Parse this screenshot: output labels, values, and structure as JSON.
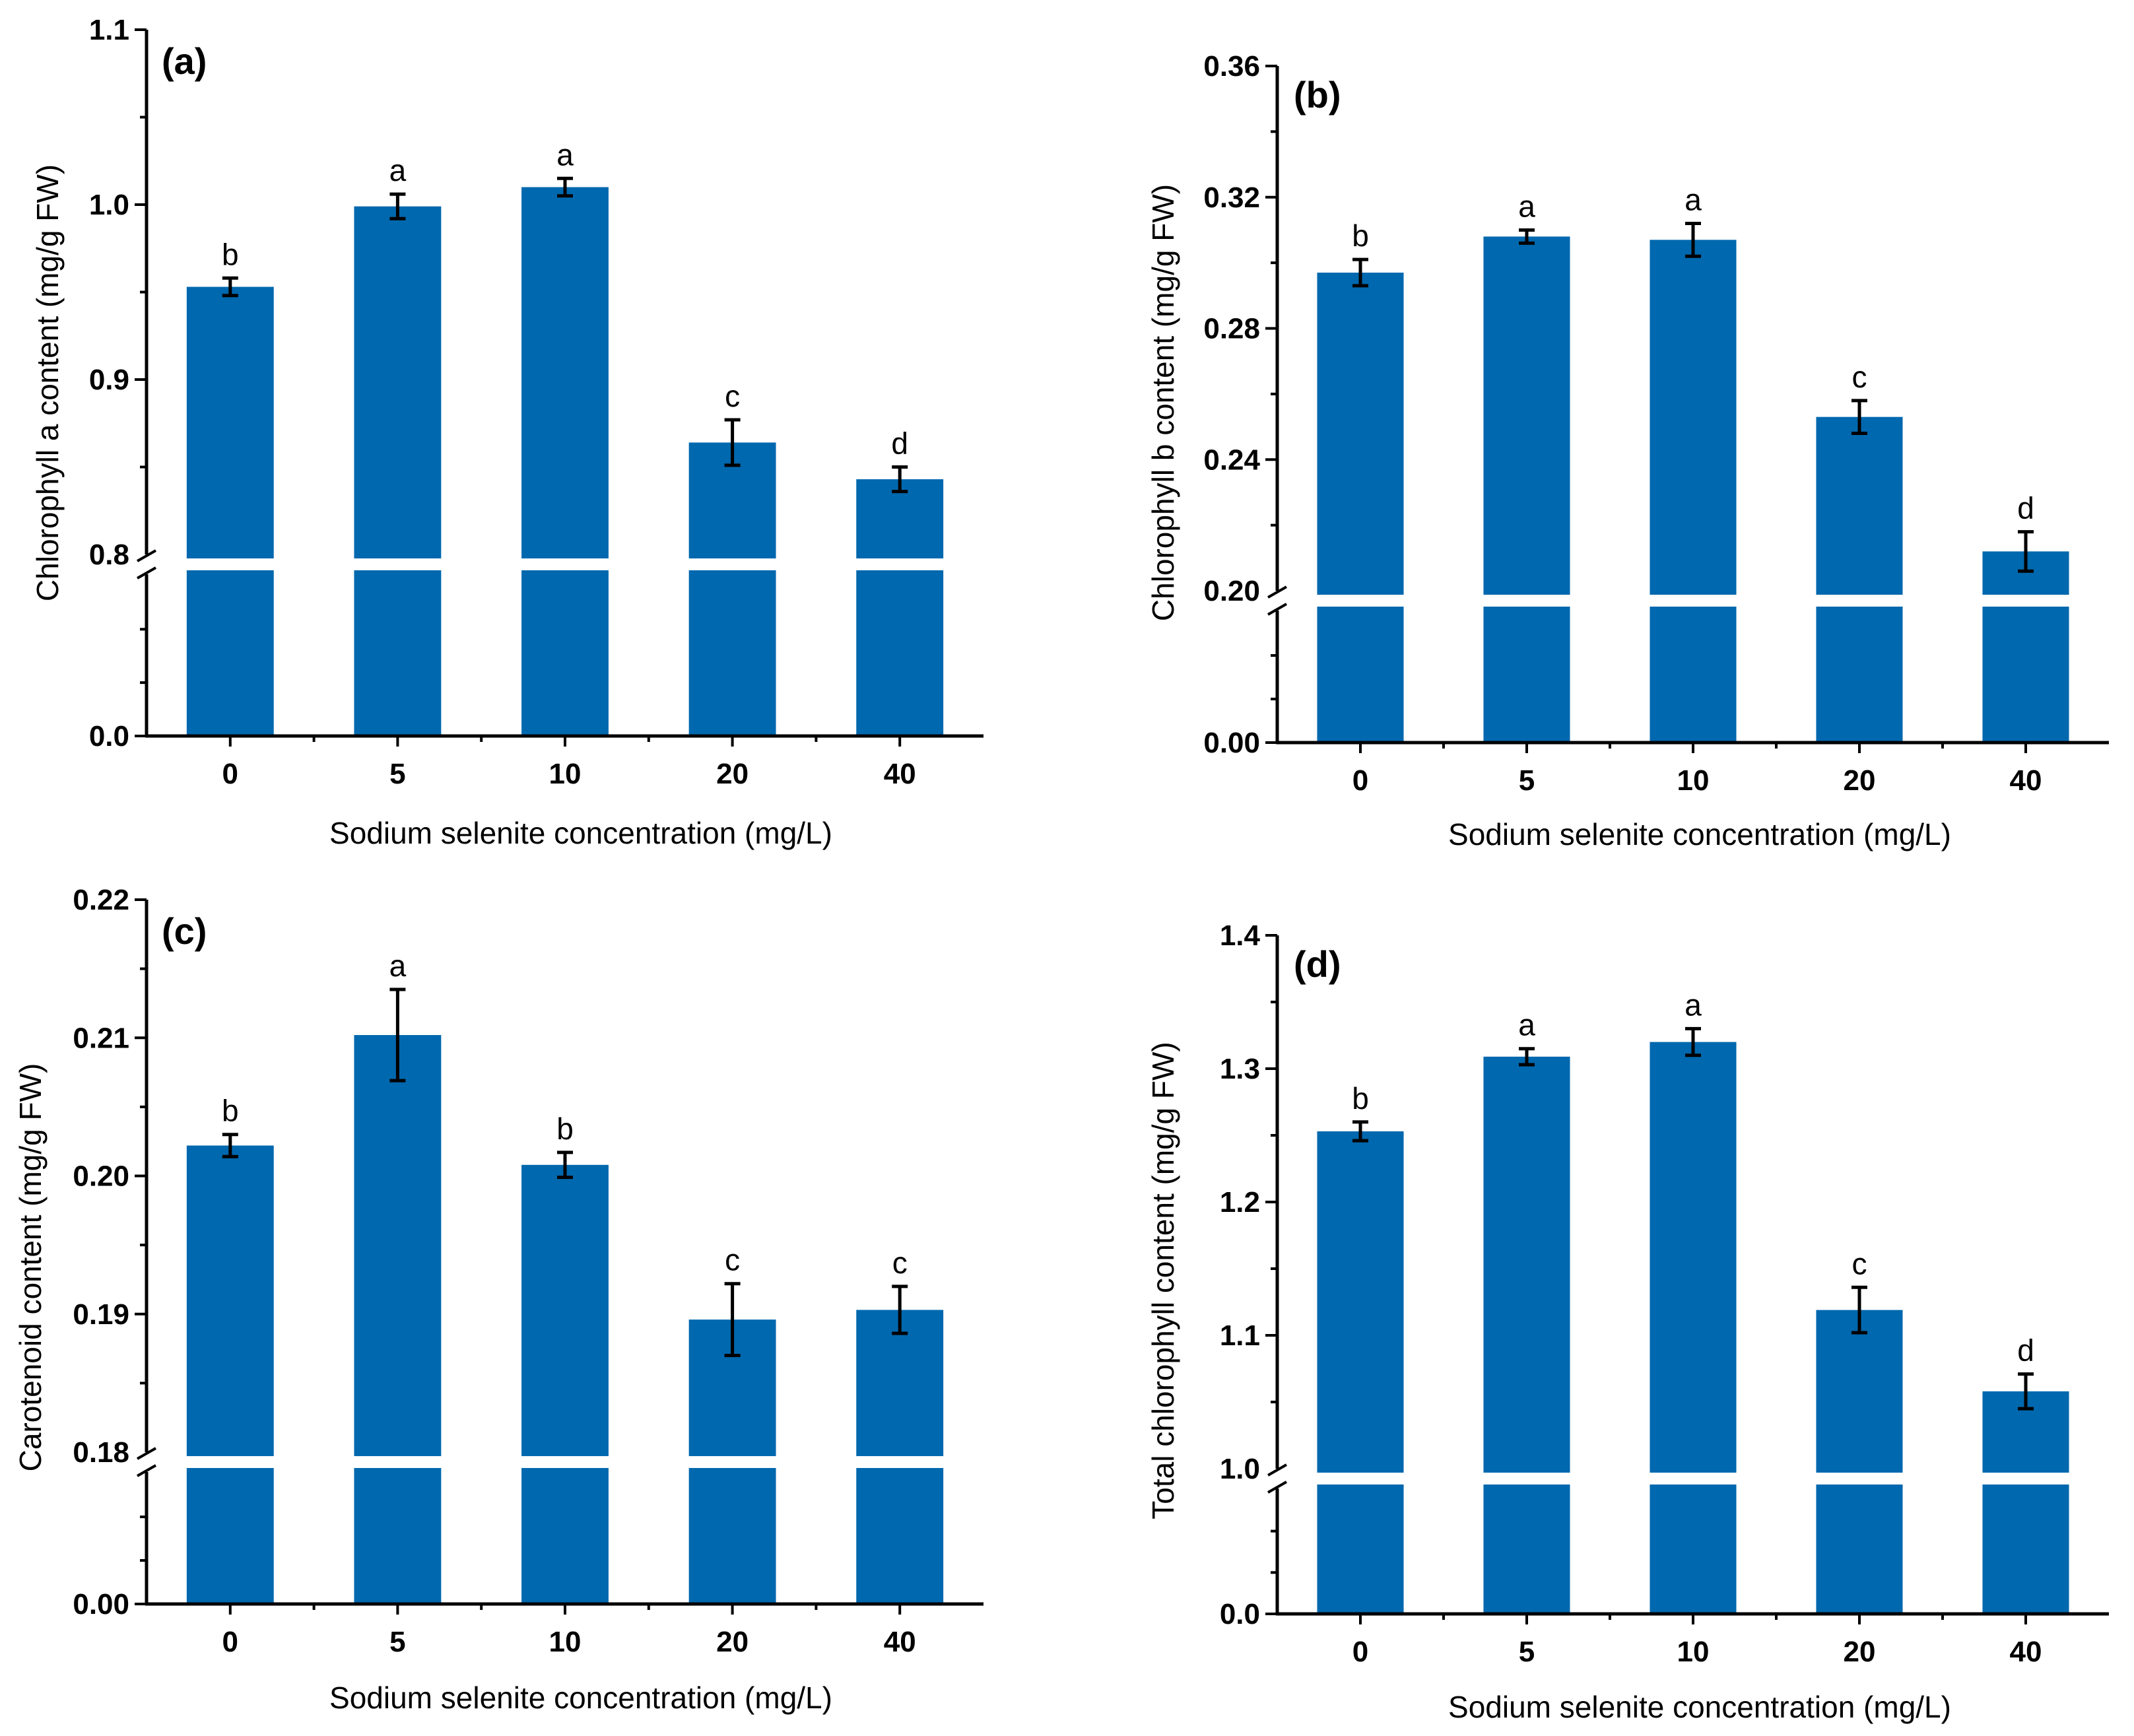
{
  "colors": {
    "bar": "#0068ae"
  },
  "chart_data": [
    {
      "type": "bar",
      "panel_label": "(a)",
      "xlabel": "Sodium selenite concentration (mg/L)",
      "ylabel": "Chlorophyll a content (mg/g FW)",
      "categories": [
        "0",
        "5",
        "10",
        "20",
        "40"
      ],
      "values": [
        0.953,
        0.999,
        1.01,
        0.864,
        0.843
      ],
      "errors": [
        0.005,
        0.007,
        0.005,
        0.013,
        0.007
      ],
      "letters": [
        "b",
        "a",
        "a",
        "c",
        "d"
      ],
      "lower_segment": {
        "range": [
          0.0,
          0.8
        ],
        "ticks": [
          "0.0"
        ]
      },
      "upper_segment": {
        "range": [
          0.8,
          1.1
        ],
        "ticks": [
          "0.8",
          "0.9",
          "1.0",
          "1.1"
        ]
      },
      "axis_break": 0.8
    },
    {
      "type": "bar",
      "panel_label": "(b)",
      "xlabel": "Sodium selenite concentration (mg/L)",
      "ylabel": "Chlorophyll b content (mg/g FW)",
      "categories": [
        "0",
        "5",
        "10",
        "20",
        "40"
      ],
      "values": [
        0.297,
        0.308,
        0.307,
        0.253,
        0.212
      ],
      "errors": [
        0.004,
        0.002,
        0.005,
        0.005,
        0.006
      ],
      "letters": [
        "b",
        "a",
        "a",
        "c",
        "d"
      ],
      "lower_segment": {
        "range": [
          0.0,
          0.2
        ],
        "ticks": [
          "0.00"
        ]
      },
      "upper_segment": {
        "range": [
          0.2,
          0.36
        ],
        "ticks": [
          "0.20",
          "0.24",
          "0.28",
          "0.32",
          "0.36"
        ]
      },
      "axis_break": 0.2
    },
    {
      "type": "bar",
      "panel_label": "(c)",
      "xlabel": "Sodium selenite concentration (mg/L)",
      "ylabel": "Carotenoid content (mg/g FW)",
      "categories": [
        "0",
        "5",
        "10",
        "20",
        "40"
      ],
      "values": [
        0.2022,
        0.2102,
        0.2008,
        0.1896,
        0.1903
      ],
      "errors": [
        0.0008,
        0.0033,
        0.0009,
        0.0026,
        0.0017
      ],
      "letters": [
        "b",
        "a",
        "b",
        "c",
        "c"
      ],
      "lower_segment": {
        "range": [
          0.0,
          0.18
        ],
        "ticks": [
          "0.00"
        ]
      },
      "upper_segment": {
        "range": [
          0.18,
          0.22
        ],
        "ticks": [
          "0.18",
          "0.19",
          "0.20",
          "0.21",
          "0.22"
        ]
      },
      "axis_break": 0.18
    },
    {
      "type": "bar",
      "panel_label": "(d)",
      "xlabel": "Sodium selenite concentration (mg/L)",
      "ylabel": "Total chlorophyll content (mg/g FW)",
      "categories": [
        "0",
        "5",
        "10",
        "20",
        "40"
      ],
      "values": [
        1.253,
        1.309,
        1.32,
        1.119,
        1.058
      ],
      "errors": [
        0.007,
        0.006,
        0.01,
        0.017,
        0.013
      ],
      "letters": [
        "b",
        "a",
        "a",
        "c",
        "d"
      ],
      "lower_segment": {
        "range": [
          0.0,
          1.0
        ],
        "ticks": [
          "0.0"
        ]
      },
      "upper_segment": {
        "range": [
          1.0,
          1.4
        ],
        "ticks": [
          "1.0",
          "1.1",
          "1.2",
          "1.3",
          "1.4"
        ]
      },
      "axis_break": 1.0
    }
  ]
}
